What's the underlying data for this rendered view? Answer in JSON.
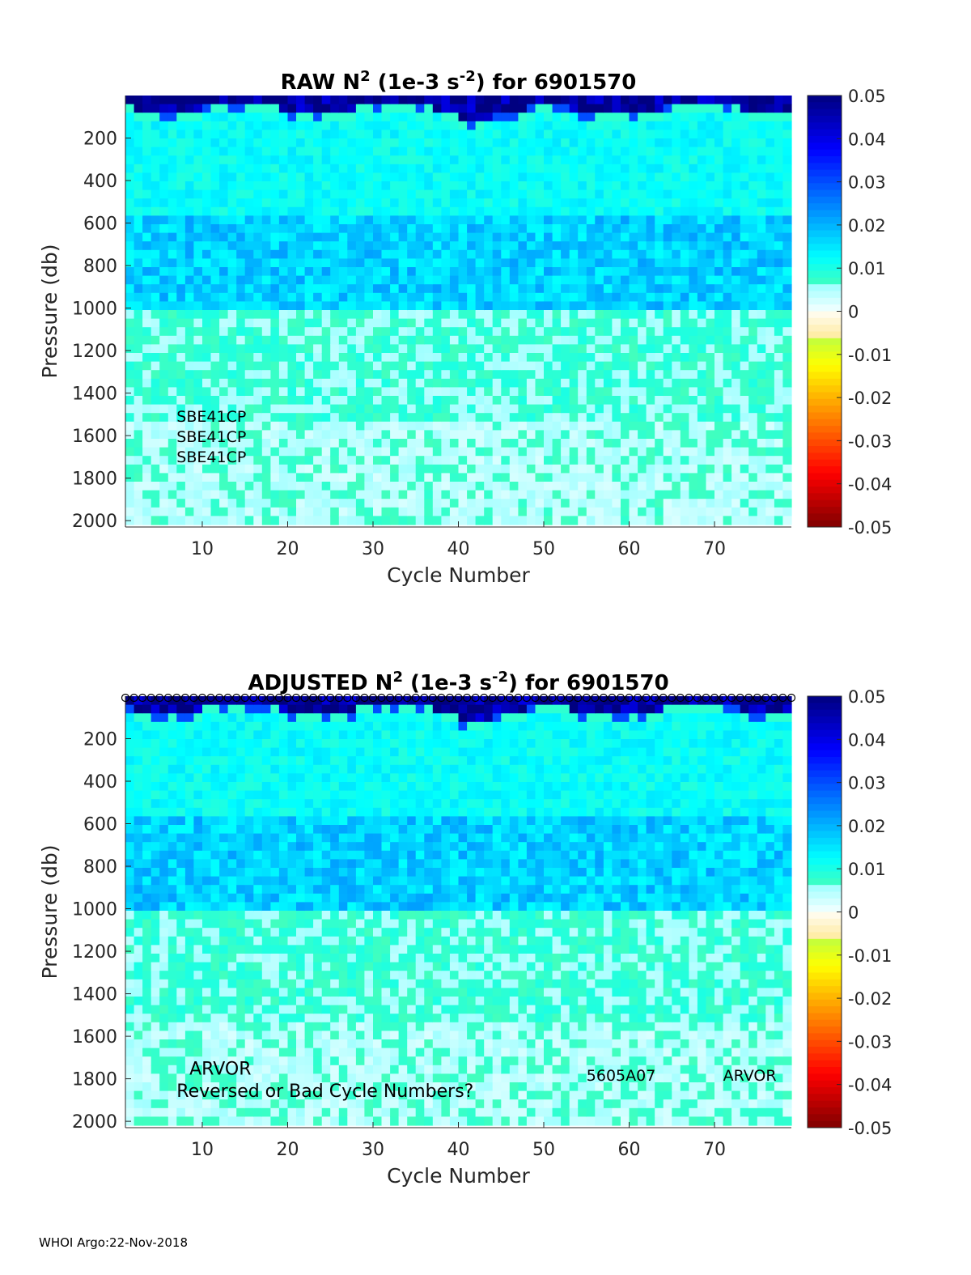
{
  "footer": "WHOI Argo:22-Nov-2018",
  "chart_data": [
    {
      "type": "heatmap",
      "title_prefix": "RAW N",
      "title_sup1": "2",
      "title_mid": " (1e-3 s",
      "title_sup2": "-2",
      "title_suffix": ") for 6901570",
      "ylabel": "Pressure (db)",
      "xlabel": "Cycle Number",
      "xlim": [
        1,
        79
      ],
      "ylim": [
        2030,
        0
      ],
      "xticks": [
        10,
        20,
        30,
        40,
        50,
        60,
        70
      ],
      "yticks": [
        200,
        400,
        600,
        800,
        1000,
        1200,
        1400,
        1600,
        1800,
        2000
      ],
      "colorbar": {
        "range": [
          -0.05,
          0.05
        ],
        "ticks": [
          "0.05",
          "0.04",
          "0.03",
          "0.02",
          "0.01",
          "0",
          "-0.01",
          "-0.02",
          "-0.03",
          "-0.04",
          "-0.05"
        ]
      },
      "surface_markers": false,
      "annotations": [
        {
          "text": "SBE41CP",
          "x": 7,
          "y": 1535
        },
        {
          "text": "SBE41CP",
          "x": 7,
          "y": 1630
        },
        {
          "text": "SBE41CP",
          "x": 7,
          "y": 1725
        }
      ]
    },
    {
      "type": "heatmap",
      "title_prefix": "ADJUSTED N",
      "title_sup1": "2",
      "title_mid": " (1e-3 s",
      "title_sup2": "-2",
      "title_suffix": ") for 6901570",
      "ylabel": "Pressure (db)",
      "xlabel": "Cycle Number",
      "xlim": [
        1,
        79
      ],
      "ylim": [
        2030,
        0
      ],
      "xticks": [
        10,
        20,
        30,
        40,
        50,
        60,
        70
      ],
      "yticks": [
        200,
        400,
        600,
        800,
        1000,
        1200,
        1400,
        1600,
        1800,
        2000
      ],
      "colorbar": {
        "range": [
          -0.05,
          0.05
        ],
        "ticks": [
          "0.05",
          "0.04",
          "0.03",
          "0.02",
          "0.01",
          "0",
          "-0.01",
          "-0.02",
          "-0.03",
          "-0.04",
          "-0.05"
        ]
      },
      "surface_markers": true,
      "annotations": [
        {
          "text": "ARVOR",
          "x": 8.5,
          "y": 1780,
          "size": 22
        },
        {
          "text": "Reversed or Bad Cycle Numbers?",
          "x": 7,
          "y": 1885,
          "size": 22
        },
        {
          "text": "5605A07",
          "x": 55,
          "y": 1810
        },
        {
          "text": "ARVOR",
          "x": 71,
          "y": 1810
        }
      ]
    }
  ]
}
